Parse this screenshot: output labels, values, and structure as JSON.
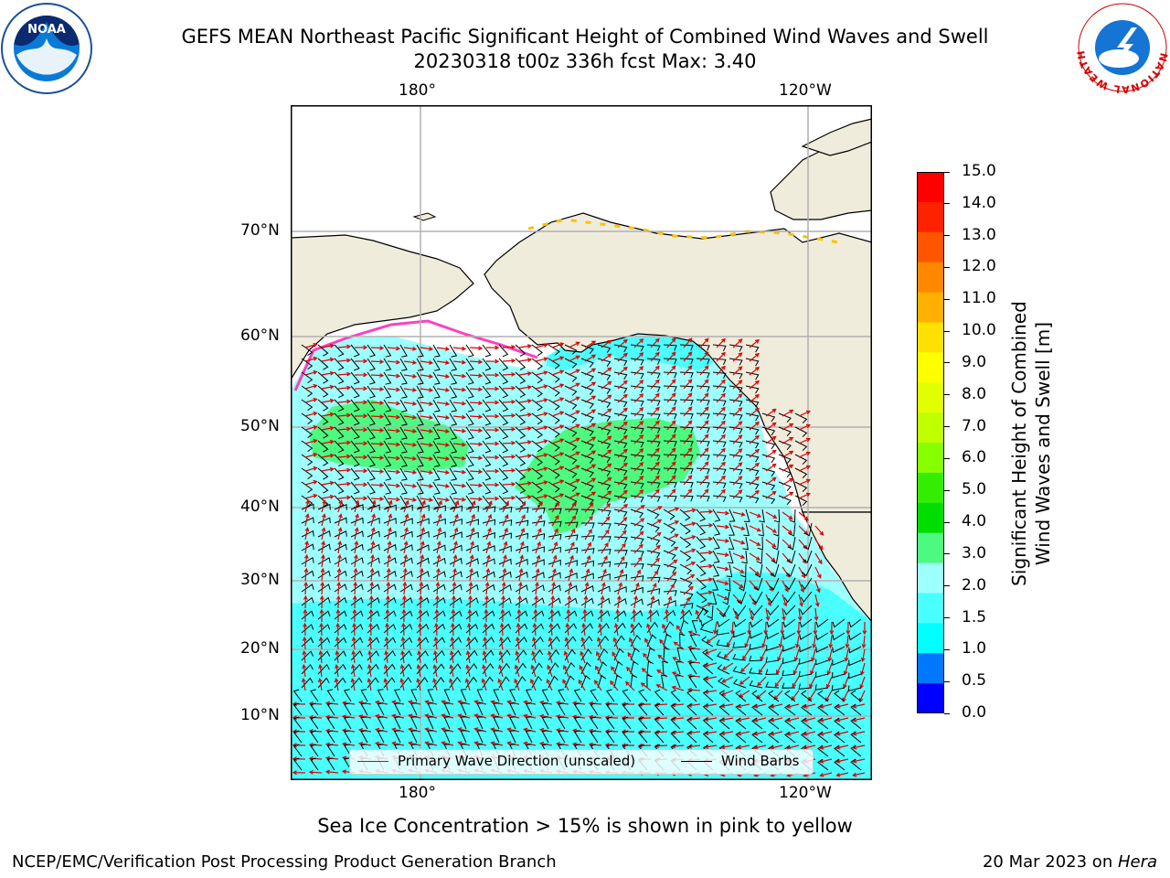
{
  "header": {
    "title_line1": "GEFS MEAN Northeast Pacific Significant Height of Combined Wind Waves and Swell",
    "title_line2": "20230318 t00z 336h fcst   Max: 3.40",
    "left_logo_text": "NOAA",
    "right_logo_text": "NATIONAL WEATHER SERVICE"
  },
  "map": {
    "lon_labels_top": [
      "180°",
      "120°W"
    ],
    "lon_labels_bottom": [
      "180°",
      "120°W"
    ],
    "lat_labels": [
      "70°N",
      "60°N",
      "50°N",
      "40°N",
      "30°N",
      "20°N",
      "10°N"
    ],
    "colors": {
      "land": "#efecdc",
      "ocean_2_3": "#9effff",
      "ocean_1_5_2": "#4affff",
      "ocean_3_4": "#4dfa80",
      "grid": "#b0b0b0",
      "arrow": "#e00000",
      "barb": "#000000",
      "ice": "#ff3fbf"
    }
  },
  "legend": {
    "wave_direction_label": "Primary Wave Direction (unscaled)",
    "wind_barbs_label": "Wind Barbs"
  },
  "colorbar": {
    "label_line1": "Significant Height of Combined",
    "label_line2": "Wind Waves and Swell [m]",
    "ticks": [
      "15.0",
      "14.0",
      "13.0",
      "12.0",
      "11.0",
      "10.0",
      "9.0",
      "8.0",
      "7.0",
      "6.0",
      "5.0",
      "4.0",
      "3.0",
      "2.0",
      "1.5",
      "1.0",
      "0.5",
      "0.0"
    ],
    "colors_top_to_bottom": [
      "#ff0000",
      "#ff2200",
      "#ff5500",
      "#ff8800",
      "#ffb000",
      "#ffe000",
      "#ffff00",
      "#e0ff00",
      "#c0ff00",
      "#88ff00",
      "#33ee00",
      "#00dd00",
      "#4dfa80",
      "#9effff",
      "#4affff",
      "#00ffff",
      "#0077ff",
      "#0000ff"
    ]
  },
  "caption": "Sea Ice Concentration > 15% is shown in pink to yellow",
  "footer": {
    "left": "NCEP/EMC/Verification Post Processing Product Generation Branch",
    "right_date": "20 Mar 2023 on ",
    "right_host": "Hera"
  }
}
